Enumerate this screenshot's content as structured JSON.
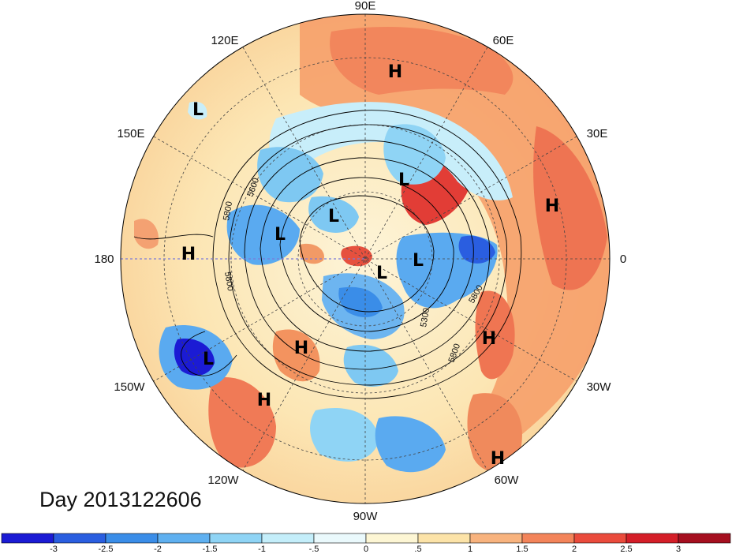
{
  "map": {
    "projection": "north polar stereographic",
    "longitude_labels": [
      "90E",
      "60E",
      "30E",
      "0",
      "30W",
      "60W",
      "90W",
      "120W",
      "150W",
      "180",
      "150E",
      "120E"
    ],
    "pressure_centers": [
      {
        "type": "H",
        "id": "h-siberia"
      },
      {
        "type": "L",
        "id": "l-kamchatka"
      },
      {
        "type": "L",
        "id": "l-ural"
      },
      {
        "type": "H",
        "id": "h-arabia"
      },
      {
        "type": "L",
        "id": "l-east-siberia"
      },
      {
        "type": "L",
        "id": "l-chukchi"
      },
      {
        "type": "H",
        "id": "h-pacific-west"
      },
      {
        "type": "L",
        "id": "l-pole"
      },
      {
        "type": "L",
        "id": "l-greenland"
      },
      {
        "type": "H",
        "id": "h-atlantic"
      },
      {
        "type": "H",
        "id": "h-alaska"
      },
      {
        "type": "L",
        "id": "l-gulf-alaska"
      },
      {
        "type": "H",
        "id": "h-pacific-east"
      },
      {
        "type": "H",
        "id": "h-subtropical-atlantic"
      }
    ],
    "contour_labels": [
      "5600",
      "5800",
      "5800",
      "5800",
      "5300",
      "5800"
    ],
    "day_label": "Day 2013122606"
  },
  "colorbar": {
    "ticks": [
      "-3",
      "-2.5",
      "-2",
      "-1.5",
      "-1",
      "-.5",
      "0",
      ".5",
      "1",
      "1.5",
      "2",
      "2.5",
      "3"
    ],
    "colors": [
      "#1b1bd4",
      "#2a5ee0",
      "#3a8de8",
      "#5fb0f0",
      "#8fd4f5",
      "#c4eefa",
      "#eaf9fc",
      "#fdf6d4",
      "#fce3a8",
      "#f8b37e",
      "#f3845a",
      "#ea4b3c",
      "#d41e28",
      "#a50f1f"
    ]
  }
}
